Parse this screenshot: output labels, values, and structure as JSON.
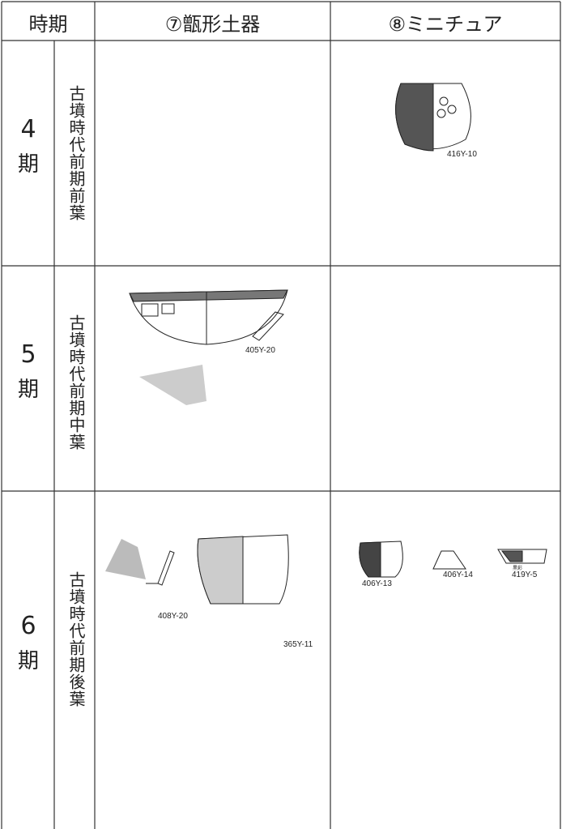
{
  "table": {
    "header": [
      "時期",
      "⑦甑形土器",
      "⑧ミニチュア"
    ],
    "rows": [
      {
        "period_number": "4",
        "period_suffix": "期",
        "era": "古墳時代前期前葉",
        "col8": [
          "416Y-10"
        ]
      },
      {
        "period_number": "5",
        "period_suffix": "期",
        "era": "古墳時代前期中葉",
        "col7": [
          "405Y-20"
        ]
      },
      {
        "period_number": "6",
        "period_suffix": "期",
        "era": "古墳時代前期後葉",
        "col7": [
          "408Y-20",
          "365Y-11"
        ],
        "col8": [
          "406Y-13",
          "406Y-14",
          "黒彩",
          "419Y-5"
        ]
      }
    ]
  }
}
